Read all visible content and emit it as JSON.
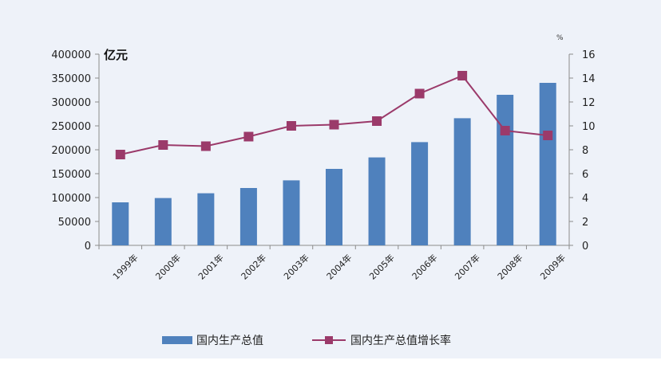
{
  "chart_data": {
    "type": "bar+line",
    "categories": [
      "1999年",
      "2000年",
      "2001年",
      "2002年",
      "2003年",
      "2004年",
      "2005年",
      "2006年",
      "2007年",
      "2008年",
      "2009年"
    ],
    "series": [
      {
        "name": "国内生产总值",
        "type": "bar",
        "axis": "left",
        "color": "#4f81bd",
        "values": [
          90000,
          99000,
          109000,
          120000,
          136000,
          160000,
          184000,
          216000,
          266000,
          315000,
          340000
        ]
      },
      {
        "name": "国内生产总值增长率",
        "type": "line",
        "axis": "right",
        "color": "#9b3a6a",
        "values": [
          7.6,
          8.4,
          8.3,
          9.1,
          10.0,
          10.1,
          10.4,
          12.7,
          14.2,
          9.6,
          9.2
        ]
      }
    ],
    "y_left": {
      "label": "亿元",
      "min": 0,
      "max": 400000,
      "ticks": [
        "0",
        "50000",
        "100000",
        "150000",
        "200000",
        "250000",
        "300000",
        "350000",
        "400000"
      ]
    },
    "y_right": {
      "label": "%",
      "min": 0,
      "max": 16,
      "ticks": [
        "0",
        "2",
        "4",
        "6",
        "8",
        "10",
        "12",
        "14",
        "16"
      ]
    },
    "grid": false,
    "legend_position": "bottom"
  }
}
